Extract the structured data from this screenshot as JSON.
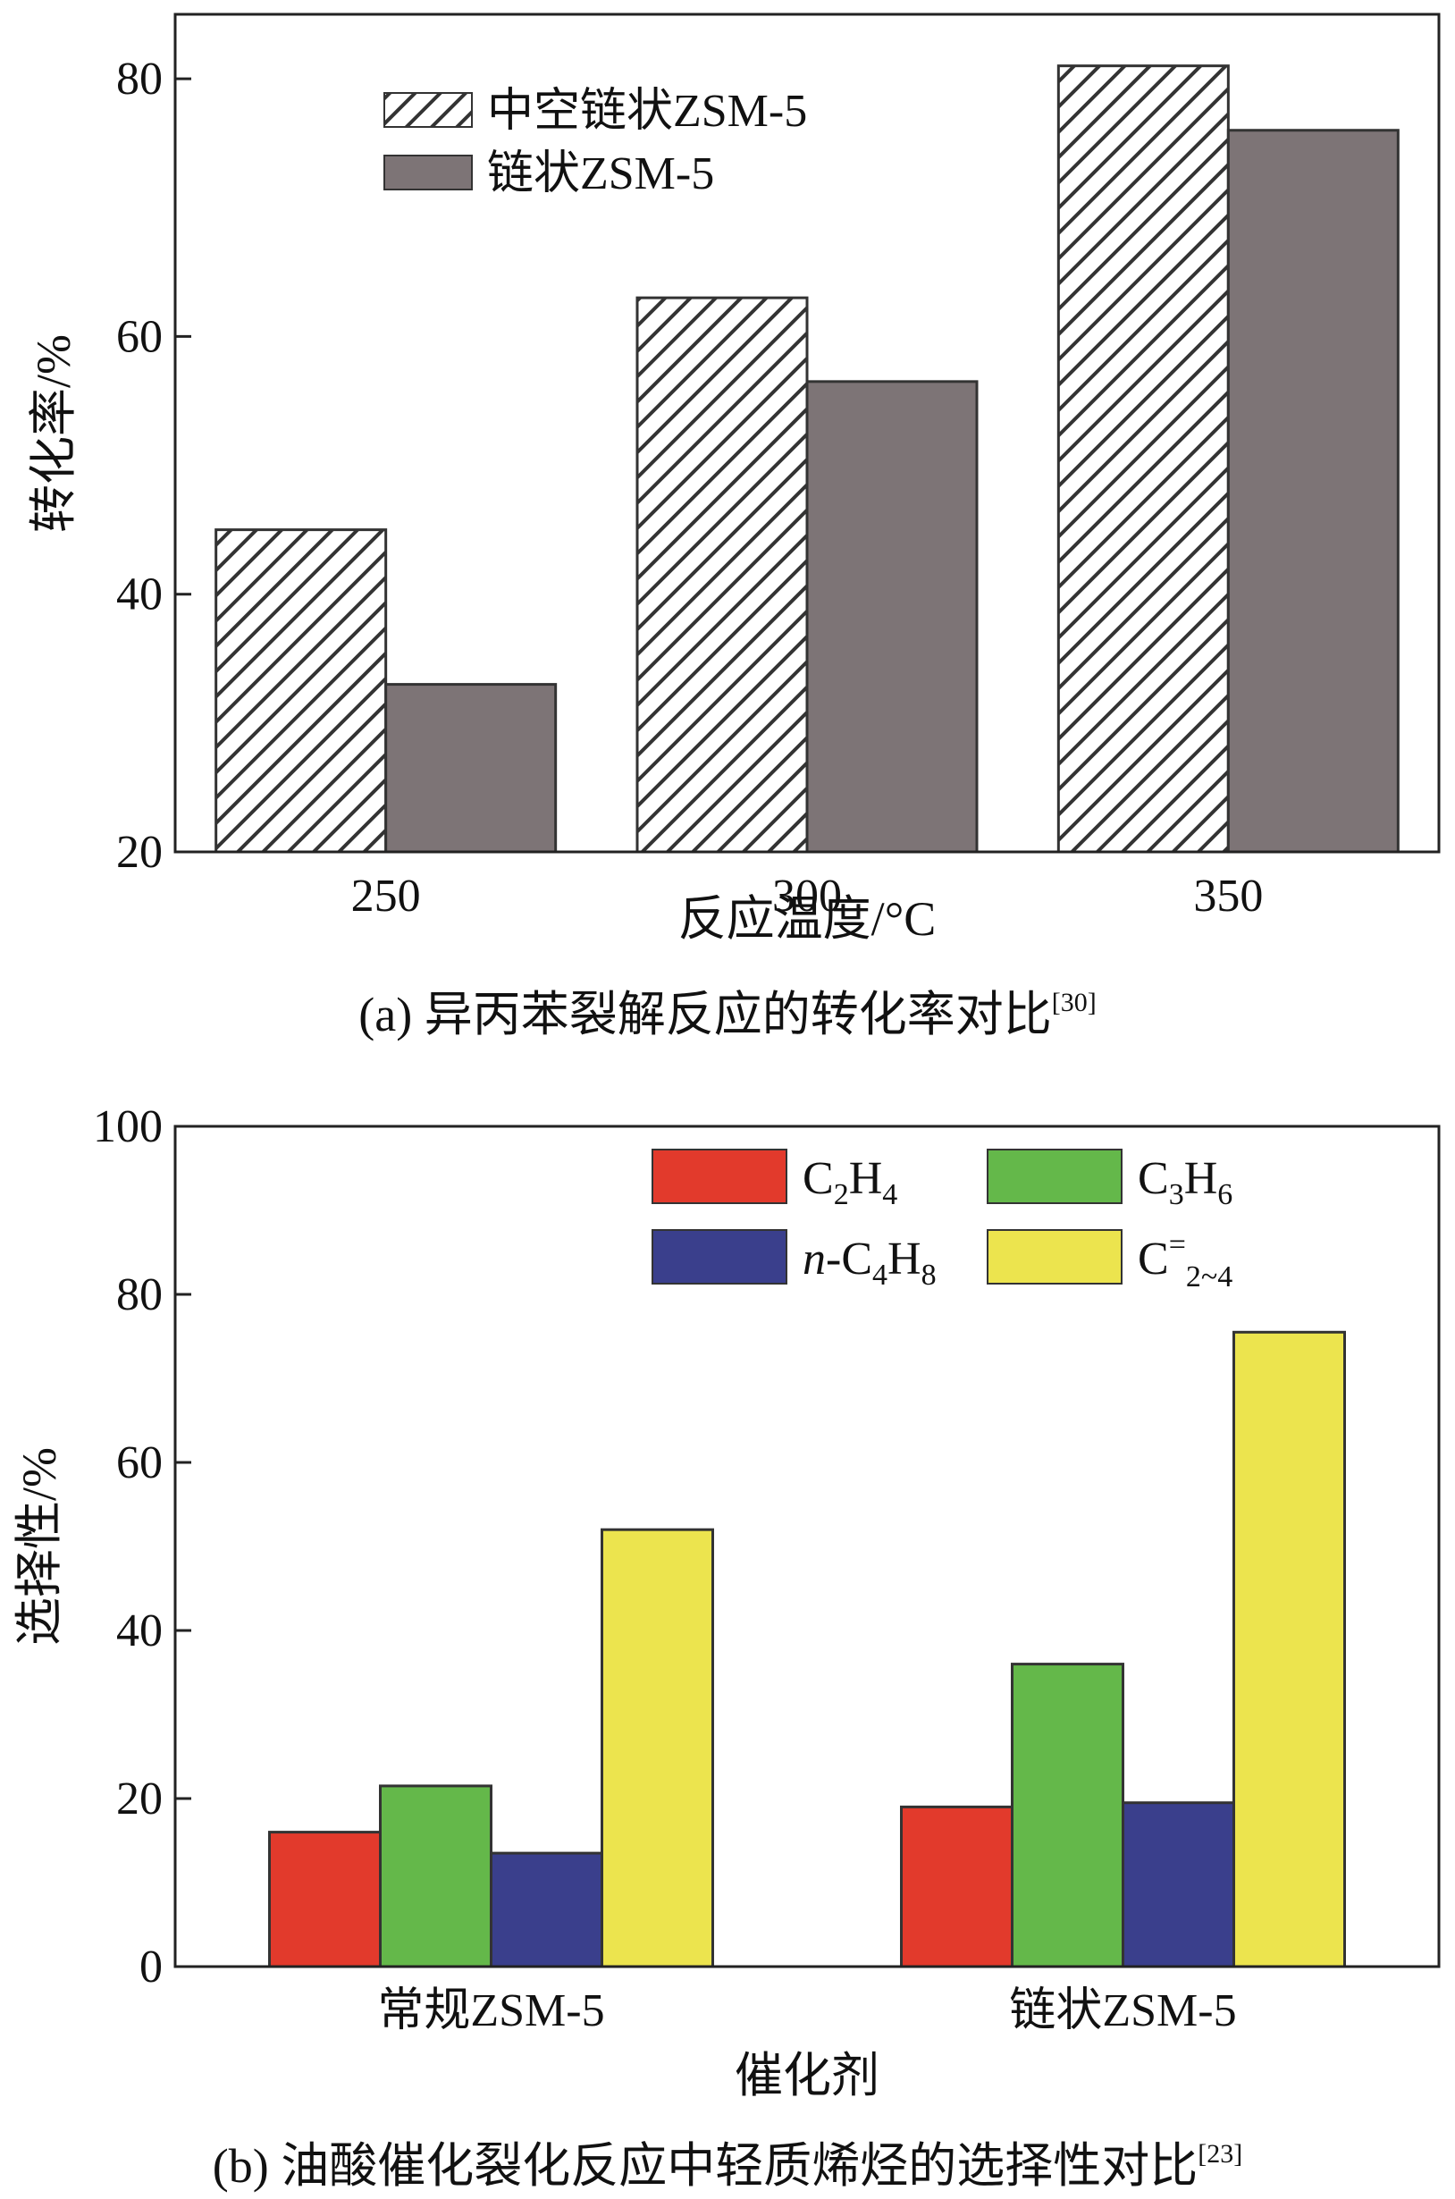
{
  "chart_data": [
    {
      "panel": "a",
      "type": "bar",
      "categories": [
        "250",
        "300",
        "350"
      ],
      "series": [
        {
          "name": "中空链状ZSM-5",
          "values": [
            45,
            63,
            81
          ],
          "pattern": "hatch",
          "color": "#333333"
        },
        {
          "name": "链状ZSM-5",
          "values": [
            33,
            56.5,
            76
          ],
          "pattern": "solid",
          "color": "#7d7476"
        }
      ],
      "xlabel": "反应温度/°C",
      "ylabel": "转化率/%",
      "ylim": [
        20,
        85
      ],
      "yticks": [
        20,
        40,
        60,
        80
      ],
      "grid": false,
      "legend_position": "top-left"
    },
    {
      "panel": "b",
      "type": "bar",
      "categories": [
        "常规ZSM-5",
        "链状ZSM-5"
      ],
      "series": [
        {
          "name": "C2H4",
          "values": [
            16,
            19
          ],
          "color": "#e23a2c"
        },
        {
          "name": "C3H6",
          "values": [
            21.5,
            36
          ],
          "color": "#64b84a"
        },
        {
          "name": "n-C4H8",
          "values": [
            13.5,
            19.5
          ],
          "color": "#3a3f8c"
        },
        {
          "name": "C=2~4",
          "values": [
            52,
            75.5
          ],
          "color": "#ece44e"
        }
      ],
      "xlabel": "催化剂",
      "ylabel": "选择性/%",
      "ylim": [
        0,
        100
      ],
      "yticks": [
        0,
        20,
        40,
        60,
        80,
        100
      ],
      "grid": false,
      "legend_position": "top-right"
    }
  ],
  "captions": {
    "a": {
      "text": "(a) 异丙苯裂解反应的转化率对比",
      "ref": "[30]"
    },
    "b": {
      "text": "(b) 油酸催化裂化反应中轻质烯烃的选择性对比",
      "ref": "[23]"
    }
  }
}
